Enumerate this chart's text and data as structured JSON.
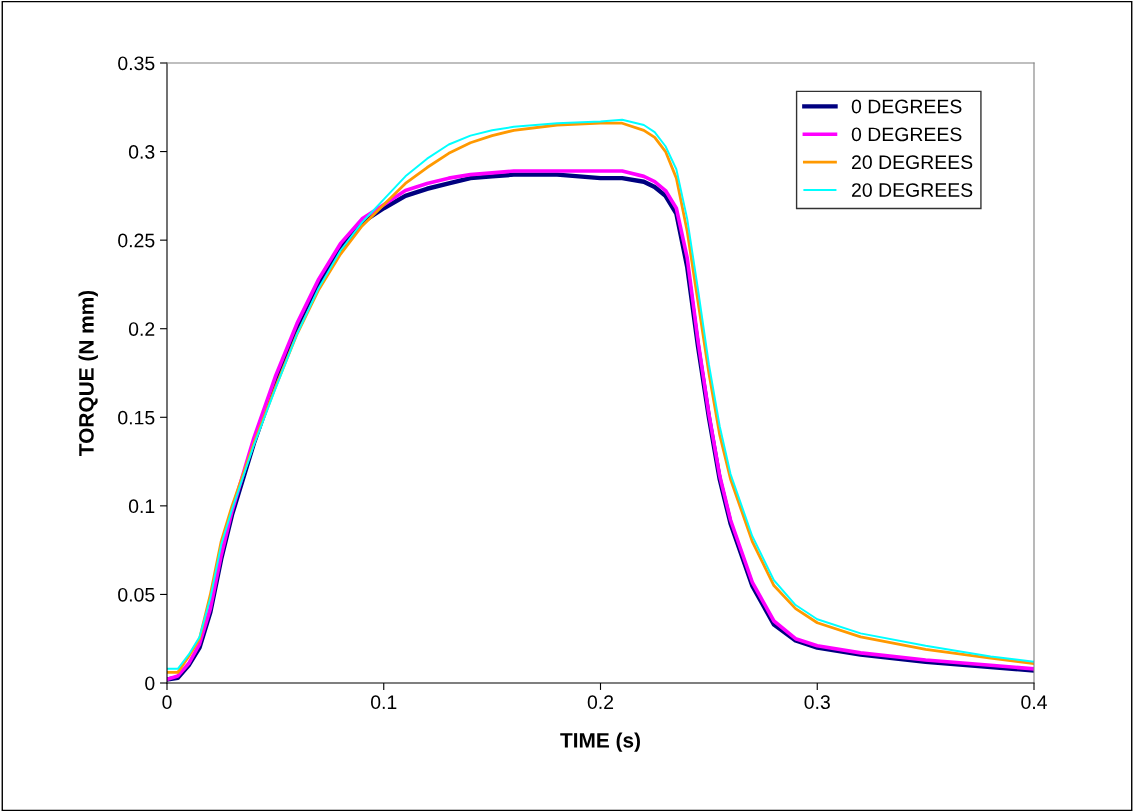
{
  "chart_data": {
    "type": "line",
    "xlabel": "TIME (s)",
    "ylabel": "TORQUE (N mm)",
    "x": [
      0,
      0.005,
      0.01,
      0.015,
      0.02,
      0.025,
      0.03,
      0.04,
      0.05,
      0.06,
      0.07,
      0.08,
      0.09,
      0.1,
      0.11,
      0.12,
      0.13,
      0.14,
      0.15,
      0.16,
      0.18,
      0.2,
      0.21,
      0.22,
      0.225,
      0.23,
      0.235,
      0.24,
      0.245,
      0.25,
      0.255,
      0.26,
      0.27,
      0.28,
      0.29,
      0.3,
      0.32,
      0.35,
      0.38,
      0.4
    ],
    "series": [
      {
        "name": "0 DEGREES",
        "color": "#000080",
        "values": [
          0.002,
          0.003,
          0.01,
          0.02,
          0.04,
          0.07,
          0.095,
          0.135,
          0.17,
          0.2,
          0.225,
          0.245,
          0.26,
          0.268,
          0.275,
          0.279,
          0.282,
          0.285,
          0.286,
          0.287,
          0.287,
          0.285,
          0.285,
          0.283,
          0.28,
          0.275,
          0.265,
          0.235,
          0.19,
          0.15,
          0.115,
          0.09,
          0.055,
          0.033,
          0.024,
          0.02,
          0.016,
          0.012,
          0.009,
          0.007
        ]
      },
      {
        "name": "0 DEGREES",
        "color": "#ff00ff",
        "values": [
          0.002,
          0.004,
          0.011,
          0.022,
          0.042,
          0.072,
          0.097,
          0.138,
          0.173,
          0.203,
          0.228,
          0.248,
          0.262,
          0.27,
          0.278,
          0.282,
          0.285,
          0.287,
          0.288,
          0.289,
          0.289,
          0.289,
          0.289,
          0.286,
          0.283,
          0.278,
          0.268,
          0.24,
          0.193,
          0.152,
          0.117,
          0.092,
          0.057,
          0.035,
          0.025,
          0.021,
          0.017,
          0.013,
          0.01,
          0.008
        ]
      },
      {
        "name": "20 DEGREES",
        "color": "#ff9900",
        "values": [
          0.006,
          0.006,
          0.015,
          0.025,
          0.05,
          0.08,
          0.1,
          0.135,
          0.167,
          0.197,
          0.222,
          0.242,
          0.258,
          0.27,
          0.282,
          0.291,
          0.299,
          0.305,
          0.309,
          0.312,
          0.315,
          0.316,
          0.316,
          0.312,
          0.308,
          0.3,
          0.285,
          0.255,
          0.215,
          0.175,
          0.14,
          0.115,
          0.08,
          0.055,
          0.042,
          0.034,
          0.026,
          0.019,
          0.014,
          0.011
        ]
      },
      {
        "name": "20 DEGREES",
        "color": "#00ffff",
        "values": [
          0.008,
          0.008,
          0.016,
          0.026,
          0.048,
          0.078,
          0.098,
          0.134,
          0.166,
          0.197,
          0.223,
          0.244,
          0.26,
          0.273,
          0.286,
          0.296,
          0.304,
          0.309,
          0.312,
          0.314,
          0.316,
          0.317,
          0.318,
          0.315,
          0.311,
          0.303,
          0.29,
          0.262,
          0.222,
          0.18,
          0.145,
          0.118,
          0.083,
          0.058,
          0.044,
          0.036,
          0.028,
          0.021,
          0.015,
          0.012
        ]
      }
    ],
    "xlim": [
      0,
      0.4
    ],
    "xticks": [
      0,
      0.1,
      0.2,
      0.3,
      0.4
    ],
    "ylim": [
      0,
      0.35
    ],
    "yticks": [
      0,
      0.05,
      0.1,
      0.15,
      0.2,
      0.25,
      0.3,
      0.35
    ],
    "grid": false,
    "legend": "top right",
    "marker": "none",
    "line_style": "solid"
  }
}
